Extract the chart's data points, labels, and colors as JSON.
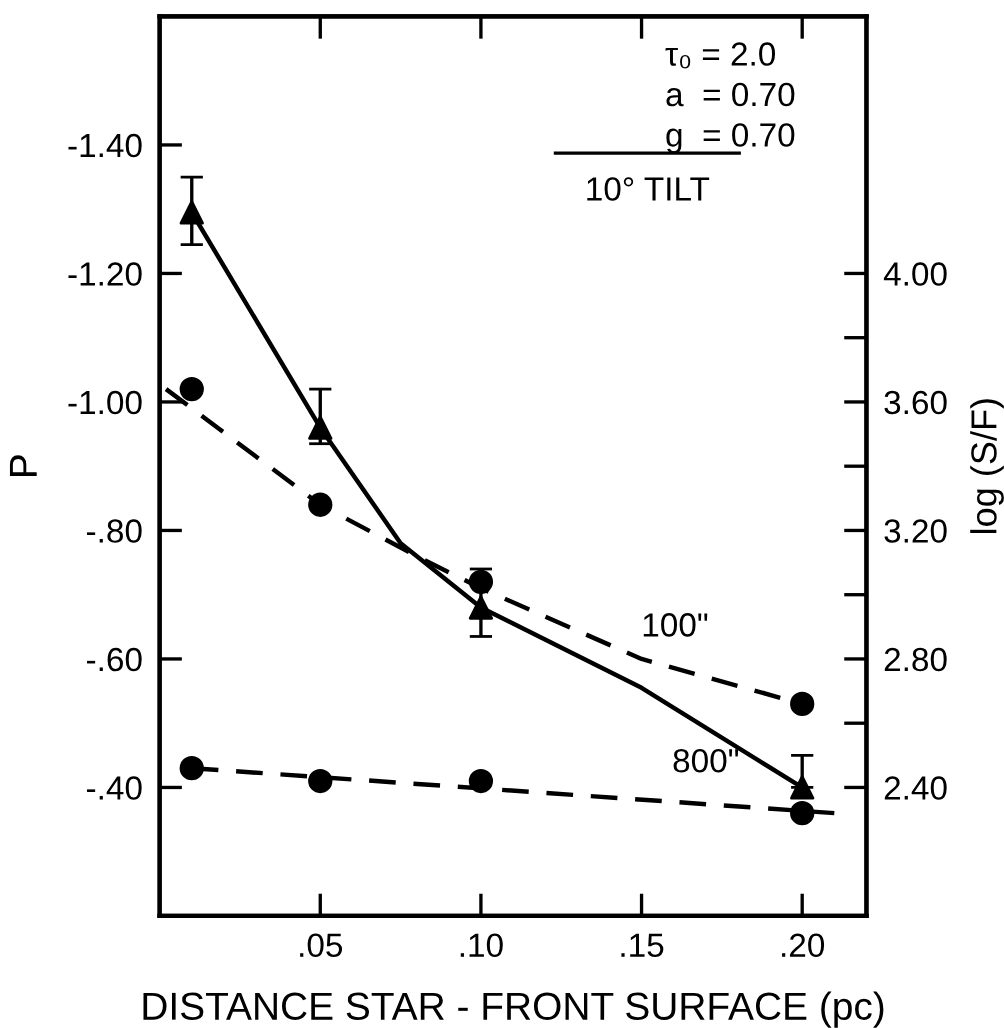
{
  "chart_data": {
    "type": "scatter",
    "xlabel": "DISTANCE STAR - FRONT SURFACE (pc)",
    "ylabel": "P",
    "y2label": "log (S/F)",
    "xlim": [
      0,
      0.22
    ],
    "xticks": [
      {
        "value": 0.05,
        "label": ".05"
      },
      {
        "value": 0.1,
        "label": ".10"
      },
      {
        "value": 0.15,
        "label": ".15"
      },
      {
        "value": 0.2,
        "label": ".20"
      }
    ],
    "ylim": [
      -0.2,
      -1.6
    ],
    "yticks": [
      {
        "value": -1.4,
        "label": "-1.40"
      },
      {
        "value": -1.2,
        "label": "-1.20"
      },
      {
        "value": -1.0,
        "label": "-1.00"
      },
      {
        "value": -0.8,
        "label": "-.80"
      },
      {
        "value": -0.6,
        "label": "-.60"
      },
      {
        "value": -0.4,
        "label": "-.40"
      }
    ],
    "y2lim": [
      2.0,
      4.8
    ],
    "y2ticks": [
      {
        "value": 2.4,
        "label": "2.40"
      },
      {
        "value": 2.6,
        "label": null
      },
      {
        "value": 2.8,
        "label": "2.80"
      },
      {
        "value": 3.0,
        "label": null
      },
      {
        "value": 3.2,
        "label": "3.20"
      },
      {
        "value": 3.4,
        "label": null
      },
      {
        "value": 3.6,
        "label": "3.60"
      },
      {
        "value": 3.8,
        "label": null
      },
      {
        "value": 4.0,
        "label": "4.00"
      }
    ],
    "grid": false,
    "series": [
      {
        "type": "line",
        "axis": "y2",
        "color": "#000000",
        "line_style": "solid",
        "marker": "none",
        "x": [
          0.01,
          0.05,
          0.075,
          0.1,
          0.15,
          0.2
        ],
        "values": [
          4.19,
          3.52,
          3.16,
          2.96,
          2.71,
          2.4
        ]
      },
      {
        "axis": "y2",
        "color": "#000000",
        "marker": "triangle",
        "x": [
          0.01,
          0.05,
          0.1,
          0.2
        ],
        "values": [
          4.19,
          3.52,
          2.96,
          2.4
        ],
        "errors": [
          [
            4.09,
            4.3
          ],
          [
            3.47,
            3.64
          ],
          [
            2.87,
            3.08
          ],
          [
            2.4,
            2.5
          ]
        ]
      },
      {
        "type": "line",
        "name": "100\"",
        "color": "#000000",
        "line_style": "dashed",
        "marker": "none",
        "x": [
          0.002,
          0.05,
          0.08,
          0.1,
          0.15,
          0.2
        ],
        "values": [
          -1.02,
          -0.84,
          -0.76,
          -0.71,
          -0.6,
          -0.53
        ]
      },
      {
        "color": "#000000",
        "marker": "circle",
        "x": [
          0.01,
          0.05,
          0.1,
          0.2
        ],
        "values": [
          -1.02,
          -0.84,
          -0.72,
          -0.53
        ]
      },
      {
        "type": "line",
        "name": "800\"",
        "color": "#000000",
        "line_style": "dashed",
        "marker": "none",
        "x": [
          0.01,
          0.21
        ],
        "values": [
          -0.43,
          -0.36
        ]
      },
      {
        "color": "#000000",
        "marker": "circle",
        "x": [
          0.01,
          0.05,
          0.1,
          0.2
        ],
        "values": [
          -0.43,
          -0.41,
          -0.41,
          -0.36
        ]
      }
    ],
    "annotations": [
      "τ₀ = 2.0",
      "a  = 0.70",
      "g  = 0.70",
      "10° TILT"
    ]
  }
}
